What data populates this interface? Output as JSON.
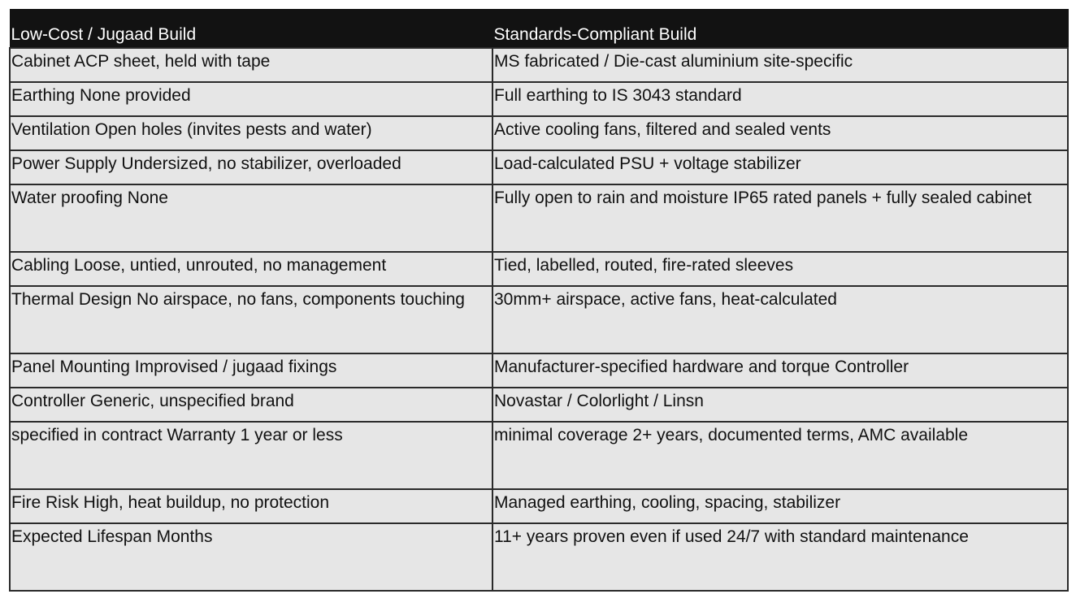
{
  "table": {
    "headers": [
      "Low-Cost / Jugaad Build",
      "Standards-Compliant Build"
    ],
    "rows": [
      [
        "Cabinet ACP sheet, held with tape",
        "MS fabricated / Die-cast aluminium site-specific"
      ],
      [
        "Earthing None provided",
        "Full earthing to IS 3043 standard"
      ],
      [
        "Ventilation Open holes (invites pests and water)",
        "Active cooling fans, filtered and sealed vents"
      ],
      [
        "Power Supply Undersized, no stabilizer, overloaded",
        "Load-calculated PSU + voltage stabilizer"
      ],
      [
        "Water proofing None",
        "Fully open to rain and moisture IP65 rated panels + fully sealed cabinet"
      ],
      [
        "Cabling Loose, untied, unrouted, no management",
        "Tied, labelled, routed, fire-rated sleeves"
      ],
      [
        "Thermal Design No airspace, no fans, components touching",
        "30mm+ airspace, active fans, heat-calculated"
      ],
      [
        "Panel Mounting Improvised / jugaad fixings",
        "Manufacturer-specified hardware and torque Controller"
      ],
      [
        "Controller Generic, unspecified brand",
        "Novastar / Colorlight / Linsn"
      ],
      [
        "specified in contract Warranty 1 year or less",
        "minimal coverage 2+ years, documented terms, AMC available"
      ],
      [
        "Fire Risk High, heat buildup, no protection",
        "Managed earthing, cooling, spacing, stabilizer"
      ],
      [
        "Expected Lifespan Months",
        "11+ years proven even if used 24/7 with standard maintenance"
      ]
    ]
  },
  "colors": {
    "header_background": "#121212",
    "header_text": "#ffffff",
    "cell_background": "#e6e6e6",
    "border": "#2a2a2a"
  }
}
